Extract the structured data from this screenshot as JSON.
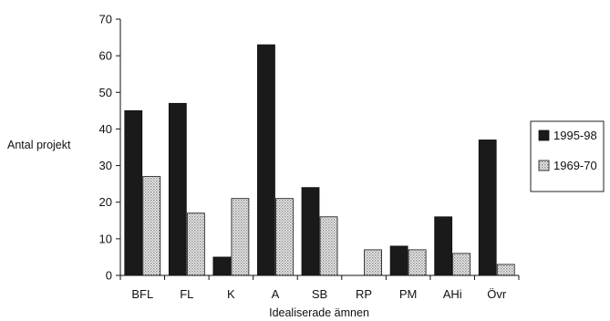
{
  "chart_data": {
    "type": "bar",
    "title": "",
    "xlabel": "Idealiserade ämnen",
    "ylabel": "Antal projekt",
    "ylim": [
      0,
      70
    ],
    "yticks": [
      0,
      10,
      20,
      30,
      40,
      50,
      60,
      70
    ],
    "grid": false,
    "legend_position": "right",
    "categories": [
      "BFL",
      "FL",
      "K",
      "A",
      "SB",
      "RP",
      "PM",
      "AHi",
      "Övr"
    ],
    "series": [
      {
        "name": "1995-98",
        "values": [
          45,
          47,
          5,
          63,
          24,
          0,
          8,
          16,
          37
        ],
        "color": "#1a1a1a",
        "pattern": "solid"
      },
      {
        "name": "1969-70",
        "values": [
          27,
          17,
          21,
          21,
          16,
          7,
          7,
          6,
          3
        ],
        "color": "#d9d9d9",
        "pattern": "dotted-hatch"
      }
    ]
  }
}
